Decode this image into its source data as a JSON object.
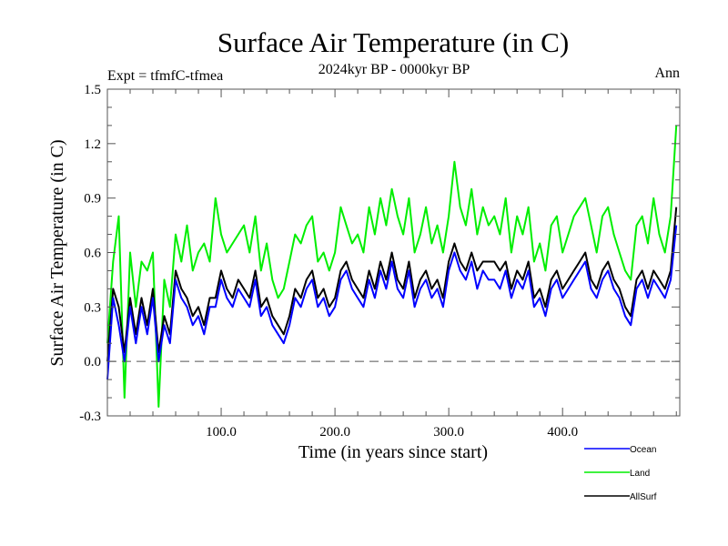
{
  "chart_data": {
    "type": "line",
    "title": "Surface Air Temperature (in C)",
    "subtitle": "2024kyr BP - 0000kyr BP",
    "left_label": "Expt = tfmfC-tfmea",
    "right_label": "Ann",
    "xlabel": "Time (in years since start)",
    "ylabel": "Surface Air Temperature (in C)",
    "xlim": [
      0,
      503
    ],
    "ylim": [
      -0.3,
      1.5
    ],
    "xticks": [
      100,
      200,
      300,
      400
    ],
    "xtick_labels": [
      "100.0",
      "200.0",
      "300.0",
      "400.0"
    ],
    "x_minor_step": 20,
    "yticks": [
      -0.3,
      0.0,
      0.3,
      0.6,
      0.9,
      1.2,
      1.5
    ],
    "ytick_labels": [
      "-0.3",
      "0.0",
      "0.3",
      "0.6",
      "0.9",
      "1.2",
      "1.5"
    ],
    "y_minor_step": 0.1,
    "reference_line": {
      "y": 0.0,
      "style": "dashed",
      "color": "#555555"
    },
    "grid": false,
    "legend_position": "bottom-right, below plot",
    "x": [
      0,
      5,
      10,
      15,
      20,
      25,
      30,
      35,
      40,
      45,
      50,
      55,
      60,
      65,
      70,
      75,
      80,
      85,
      90,
      95,
      100,
      105,
      110,
      115,
      120,
      125,
      130,
      135,
      140,
      145,
      150,
      155,
      160,
      165,
      170,
      175,
      180,
      185,
      190,
      195,
      200,
      205,
      210,
      215,
      220,
      225,
      230,
      235,
      240,
      245,
      250,
      255,
      260,
      265,
      270,
      275,
      280,
      285,
      290,
      295,
      300,
      305,
      310,
      315,
      320,
      325,
      330,
      335,
      340,
      345,
      350,
      355,
      360,
      365,
      370,
      375,
      380,
      385,
      390,
      395,
      400,
      405,
      410,
      415,
      420,
      425,
      430,
      435,
      440,
      445,
      450,
      455,
      460,
      465,
      470,
      475,
      480,
      485,
      490,
      495,
      500
    ],
    "series": [
      {
        "name": "Ocean",
        "color": "#0000ff",
        "values": [
          -0.1,
          0.35,
          0.2,
          0.0,
          0.3,
          0.1,
          0.3,
          0.15,
          0.35,
          0.0,
          0.2,
          0.1,
          0.45,
          0.35,
          0.3,
          0.2,
          0.25,
          0.15,
          0.3,
          0.3,
          0.45,
          0.35,
          0.3,
          0.4,
          0.35,
          0.3,
          0.45,
          0.25,
          0.3,
          0.2,
          0.15,
          0.1,
          0.2,
          0.35,
          0.3,
          0.4,
          0.45,
          0.3,
          0.35,
          0.25,
          0.3,
          0.45,
          0.5,
          0.4,
          0.35,
          0.3,
          0.45,
          0.35,
          0.5,
          0.4,
          0.55,
          0.4,
          0.35,
          0.5,
          0.3,
          0.4,
          0.45,
          0.35,
          0.4,
          0.3,
          0.5,
          0.6,
          0.5,
          0.45,
          0.55,
          0.4,
          0.5,
          0.45,
          0.45,
          0.4,
          0.5,
          0.35,
          0.45,
          0.4,
          0.5,
          0.3,
          0.35,
          0.25,
          0.4,
          0.45,
          0.35,
          0.4,
          0.45,
          0.5,
          0.55,
          0.4,
          0.35,
          0.45,
          0.5,
          0.4,
          0.35,
          0.25,
          0.2,
          0.4,
          0.45,
          0.35,
          0.45,
          0.4,
          0.35,
          0.45,
          0.75
        ]
      },
      {
        "name": "Land",
        "color": "#00ee00",
        "values": [
          0.1,
          0.55,
          0.8,
          -0.2,
          0.6,
          0.3,
          0.55,
          0.5,
          0.6,
          -0.25,
          0.45,
          0.3,
          0.7,
          0.55,
          0.75,
          0.5,
          0.6,
          0.65,
          0.55,
          0.9,
          0.7,
          0.6,
          0.65,
          0.7,
          0.75,
          0.6,
          0.8,
          0.5,
          0.65,
          0.45,
          0.35,
          0.4,
          0.55,
          0.7,
          0.65,
          0.75,
          0.8,
          0.55,
          0.6,
          0.5,
          0.6,
          0.85,
          0.75,
          0.65,
          0.7,
          0.6,
          0.85,
          0.7,
          0.9,
          0.75,
          0.95,
          0.8,
          0.7,
          0.9,
          0.6,
          0.7,
          0.85,
          0.65,
          0.75,
          0.6,
          0.8,
          1.1,
          0.85,
          0.75,
          0.95,
          0.7,
          0.85,
          0.75,
          0.8,
          0.7,
          0.9,
          0.6,
          0.8,
          0.7,
          0.85,
          0.55,
          0.65,
          0.5,
          0.75,
          0.8,
          0.6,
          0.7,
          0.8,
          0.85,
          0.9,
          0.75,
          0.6,
          0.8,
          0.85,
          0.7,
          0.6,
          0.5,
          0.45,
          0.75,
          0.8,
          0.65,
          0.9,
          0.7,
          0.6,
          0.8,
          1.3
        ]
      },
      {
        "name": "AllSurf",
        "color": "#000000",
        "values": [
          0.0,
          0.4,
          0.3,
          0.05,
          0.35,
          0.15,
          0.35,
          0.2,
          0.4,
          0.05,
          0.25,
          0.15,
          0.5,
          0.4,
          0.35,
          0.25,
          0.3,
          0.2,
          0.35,
          0.35,
          0.5,
          0.4,
          0.35,
          0.45,
          0.4,
          0.35,
          0.5,
          0.3,
          0.35,
          0.25,
          0.2,
          0.15,
          0.25,
          0.4,
          0.35,
          0.45,
          0.5,
          0.35,
          0.4,
          0.3,
          0.35,
          0.5,
          0.55,
          0.45,
          0.4,
          0.35,
          0.5,
          0.4,
          0.55,
          0.45,
          0.6,
          0.45,
          0.4,
          0.55,
          0.35,
          0.45,
          0.5,
          0.4,
          0.45,
          0.35,
          0.55,
          0.65,
          0.55,
          0.5,
          0.6,
          0.5,
          0.55,
          0.55,
          0.55,
          0.5,
          0.55,
          0.4,
          0.5,
          0.45,
          0.55,
          0.35,
          0.4,
          0.3,
          0.45,
          0.5,
          0.4,
          0.45,
          0.5,
          0.55,
          0.6,
          0.45,
          0.4,
          0.5,
          0.55,
          0.45,
          0.4,
          0.3,
          0.25,
          0.45,
          0.5,
          0.4,
          0.5,
          0.45,
          0.4,
          0.5,
          0.85
        ]
      }
    ]
  }
}
